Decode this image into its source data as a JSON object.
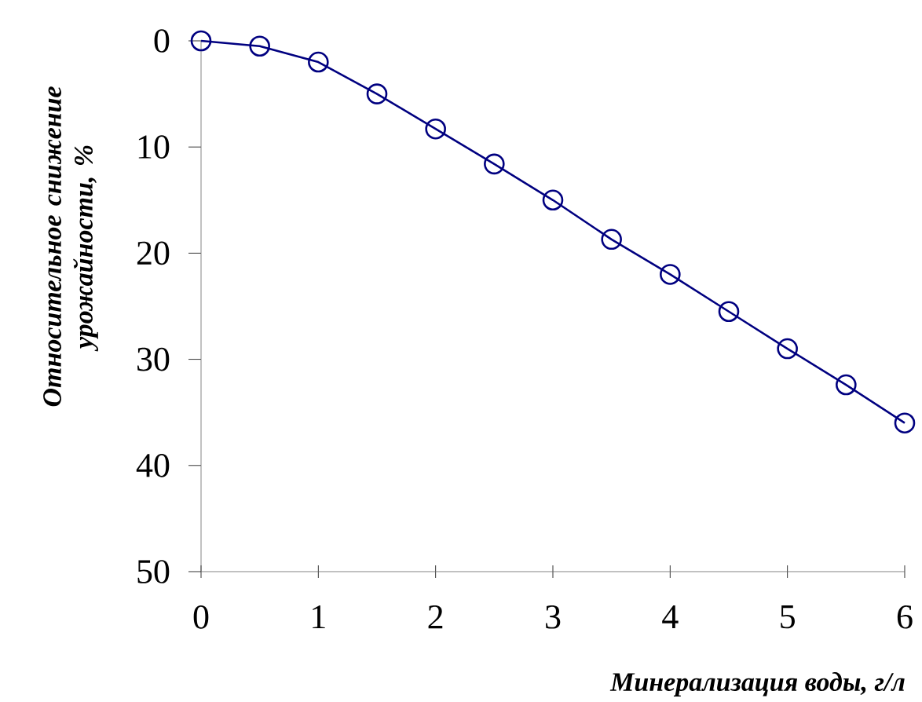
{
  "chart_data": {
    "type": "line",
    "xlabel": "Минерализация воды, г/л",
    "ylabel": "Относительное снижение урожайности, %",
    "x": [
      0,
      0.5,
      1,
      1.5,
      2,
      2.5,
      3,
      3.5,
      4,
      4.5,
      5,
      5.5,
      6
    ],
    "series": [
      {
        "color": "#000080",
        "values": [
          0,
          0.5,
          2,
          5,
          8.3,
          11.6,
          15,
          18.7,
          22,
          25.5,
          29,
          32.4,
          36
        ]
      }
    ],
    "xlim": [
      0,
      6
    ],
    "xticks": [
      0,
      1,
      2,
      3,
      4,
      5,
      6
    ],
    "ylim": [
      50,
      0
    ],
    "yticks": [
      0,
      10,
      20,
      30,
      40,
      50
    ],
    "marker": "circle",
    "line_style": "solid",
    "grid": false
  }
}
